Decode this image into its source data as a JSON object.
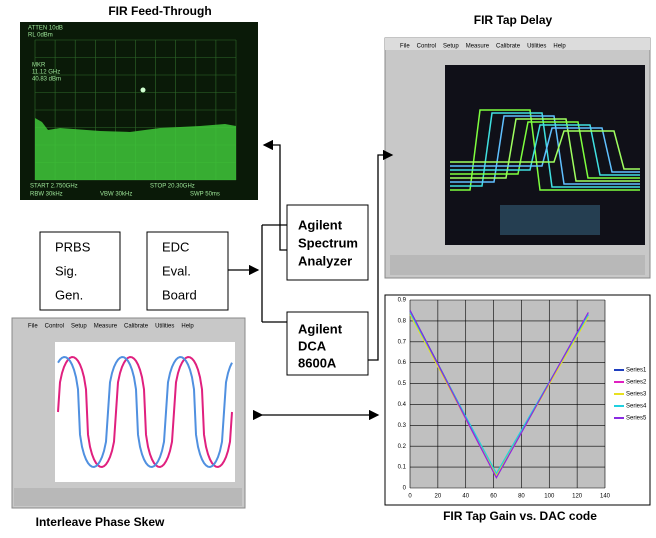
{
  "captions": {
    "feed_through": "FIR Feed-Through",
    "tap_delay": "FIR Tap Delay",
    "phase_skew": "Interleave Phase Skew",
    "tap_gain": "FIR Tap Gain vs. DAC code"
  },
  "boxes": [
    {
      "lines": [
        "PRBS",
        "Sig.",
        "Gen."
      ]
    },
    {
      "lines": [
        "EDC",
        "Eval.",
        "Board"
      ]
    },
    {
      "lines": [
        "Agilent",
        "Spectrum",
        "Analyzer"
      ]
    },
    {
      "lines": [
        "Agilent",
        "DCA",
        "8600A"
      ]
    }
  ],
  "spectrum": {
    "readouts": [
      "ATTEN 10dB",
      "RL 0dBm",
      "MKR",
      "11.12 GHz",
      "40.83 dBm",
      "START 2.750GHz",
      "STOP 20.30GHz",
      "RBW 30kHz",
      "VBW 30kHz",
      "SWP 50ms"
    ]
  },
  "scope_menu": [
    "File",
    "Control",
    "Setup",
    "Measure",
    "Calibrate",
    "Utilities",
    "Help"
  ],
  "gain_chart": {
    "ylim": [
      0,
      0.9
    ],
    "yticks": [
      0,
      0.1,
      0.2,
      0.3,
      0.4,
      0.5,
      0.6,
      0.7,
      0.8,
      0.9
    ],
    "xlim": [
      0,
      140
    ],
    "xticks": [
      0,
      20,
      40,
      60,
      80,
      100,
      120,
      140
    ],
    "x": [
      0,
      62,
      128
    ],
    "series": [
      {
        "name": "Series1",
        "color": "#1f3fbf",
        "values": [
          0.85,
          0.06,
          0.83
        ]
      },
      {
        "name": "Series2",
        "color": "#e020c0",
        "values": [
          0.84,
          0.05,
          0.84
        ]
      },
      {
        "name": "Series3",
        "color": "#e8e020",
        "values": [
          0.83,
          0.06,
          0.82
        ]
      },
      {
        "name": "Series4",
        "color": "#20d0e0",
        "values": [
          0.84,
          0.07,
          0.83
        ]
      },
      {
        "name": "Series5",
        "color": "#8a2be2",
        "values": [
          0.85,
          0.05,
          0.84
        ]
      }
    ]
  }
}
